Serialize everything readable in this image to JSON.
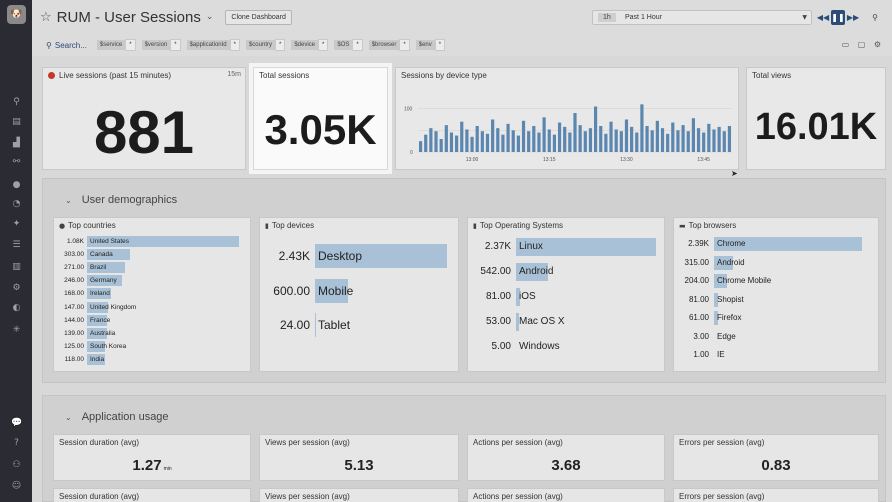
{
  "sidebar": {
    "logo": "🐶",
    "icons": [
      "binoculars-icon",
      "monitor-icon",
      "chart-icon",
      "network-icon",
      "alert-icon",
      "gauge-icon",
      "puzzle-icon",
      "list-icon",
      "notebook-icon",
      "gear-icon",
      "shield-icon",
      "sparkle-icon",
      "chat-icon",
      "help-icon",
      "team-icon",
      "user-avatar-icon"
    ]
  },
  "header": {
    "title": "RUM - User Sessions",
    "clone_label": "Clone Dashboard",
    "time_chip": "1h",
    "time_label": "Past 1 Hour",
    "search_label": "Search...",
    "variables": [
      {
        "name": "$service",
        "value": "*"
      },
      {
        "name": "$version",
        "value": "*"
      },
      {
        "name": "$applicationId",
        "value": "*"
      },
      {
        "name": "$country",
        "value": "*"
      },
      {
        "name": "$device",
        "value": "*"
      },
      {
        "name": "$OS",
        "value": "*"
      },
      {
        "name": "$browser",
        "value": "*"
      },
      {
        "name": "$env",
        "value": "*"
      }
    ]
  },
  "widgets": {
    "live_sessions": {
      "title": "Live sessions (past 15 minutes)",
      "badge": "15m",
      "value": "881"
    },
    "total_sessions": {
      "title": "Total sessions",
      "value": "3.05K"
    },
    "sessions_by_device": {
      "title": "Sessions by device type",
      "y_tick": "100",
      "y_zero": "0",
      "x_ticks": [
        "13:00",
        "13:15",
        "13:30",
        "13:45"
      ]
    },
    "total_views": {
      "title": "Total views",
      "value": "16.01K"
    }
  },
  "chart_data": {
    "type": "bar",
    "title": "Sessions by device type",
    "x": [
      "12:50",
      "12:51",
      "12:52",
      "12:53",
      "12:54",
      "12:55",
      "12:56",
      "12:57",
      "12:58",
      "12:59",
      "13:00",
      "13:01",
      "13:02",
      "13:03",
      "13:04",
      "13:05",
      "13:06",
      "13:07",
      "13:08",
      "13:09",
      "13:10",
      "13:11",
      "13:12",
      "13:13",
      "13:14",
      "13:15",
      "13:16",
      "13:17",
      "13:18",
      "13:19",
      "13:20",
      "13:21",
      "13:22",
      "13:23",
      "13:24",
      "13:25",
      "13:26",
      "13:27",
      "13:28",
      "13:29",
      "13:30",
      "13:31",
      "13:32",
      "13:33",
      "13:34",
      "13:35",
      "13:36",
      "13:37",
      "13:38",
      "13:39",
      "13:40",
      "13:41",
      "13:42",
      "13:43",
      "13:44",
      "13:45",
      "13:46",
      "13:47",
      "13:48",
      "13:49",
      "13:50"
    ],
    "values": [
      25,
      40,
      55,
      48,
      30,
      62,
      45,
      38,
      70,
      52,
      35,
      60,
      48,
      42,
      75,
      55,
      40,
      65,
      50,
      38,
      72,
      48,
      60,
      45,
      80,
      52,
      40,
      68,
      58,
      45,
      90,
      62,
      48,
      55,
      105,
      60,
      42,
      70,
      52,
      48,
      75,
      58,
      45,
      110,
      60,
      50,
      72,
      55,
      42,
      68,
      50,
      62,
      48,
      78,
      55,
      45,
      65,
      52,
      58,
      48,
      60
    ],
    "ylim": [
      0,
      120
    ],
    "grid": true,
    "color": "#5b86b0"
  },
  "groups": {
    "demographics": {
      "title": "User demographics",
      "countries": {
        "title": "Top countries",
        "rows": [
          {
            "value": "1.08K",
            "label": "United States",
            "pct": 1.0
          },
          {
            "value": "303.00",
            "label": "Canada",
            "pct": 0.28
          },
          {
            "value": "271.00",
            "label": "Brazil",
            "pct": 0.25
          },
          {
            "value": "246.00",
            "label": "Germany",
            "pct": 0.23
          },
          {
            "value": "168.00",
            "label": "Ireland",
            "pct": 0.16
          },
          {
            "value": "147.00",
            "label": "United Kingdom",
            "pct": 0.14
          },
          {
            "value": "144.00",
            "label": "France",
            "pct": 0.13
          },
          {
            "value": "139.00",
            "label": "Australia",
            "pct": 0.13
          },
          {
            "value": "125.00",
            "label": "South Korea",
            "pct": 0.12
          },
          {
            "value": "118.00",
            "label": "India",
            "pct": 0.11
          }
        ]
      },
      "devices": {
        "title": "Top devices",
        "rows": [
          {
            "value": "2.43K",
            "label": "Desktop",
            "pct": 1.0
          },
          {
            "value": "600.00",
            "label": "Mobile",
            "pct": 0.25
          },
          {
            "value": "24.00",
            "label": "Tablet",
            "pct": 0.01
          }
        ]
      },
      "os": {
        "title": "Top Operating Systems",
        "rows": [
          {
            "value": "2.37K",
            "label": "Linux",
            "pct": 1.0
          },
          {
            "value": "542.00",
            "label": "Android",
            "pct": 0.23
          },
          {
            "value": "81.00",
            "label": "iOS",
            "pct": 0.03
          },
          {
            "value": "53.00",
            "label": "Mac OS X",
            "pct": 0.02
          },
          {
            "value": "5.00",
            "label": "Windows",
            "pct": 0.0
          }
        ]
      },
      "browsers": {
        "title": "Top browsers",
        "rows": [
          {
            "value": "2.39K",
            "label": "Chrome",
            "pct": 1.0
          },
          {
            "value": "315.00",
            "label": "Android",
            "pct": 0.13
          },
          {
            "value": "204.00",
            "label": "Chrome Mobile",
            "pct": 0.09
          },
          {
            "value": "81.00",
            "label": "Shopist",
            "pct": 0.03
          },
          {
            "value": "61.00",
            "label": "Firefox",
            "pct": 0.03
          },
          {
            "value": "3.00",
            "label": "Edge",
            "pct": 0.0
          },
          {
            "value": "1.00",
            "label": "IE",
            "pct": 0.0
          }
        ]
      }
    },
    "usage": {
      "title": "Application usage",
      "metrics": [
        {
          "title": "Session duration (avg)",
          "value": "1.27",
          "unit": "min"
        },
        {
          "title": "Views per session (avg)",
          "value": "5.13",
          "unit": ""
        },
        {
          "title": "Actions per session (avg)",
          "value": "3.68",
          "unit": ""
        },
        {
          "title": "Errors per session (avg)",
          "value": "0.83",
          "unit": ""
        }
      ],
      "metrics_row2": [
        {
          "title": "Session duration (avg)"
        },
        {
          "title": "Views per session (avg)"
        },
        {
          "title": "Actions per session (avg)"
        },
        {
          "title": "Errors per session (avg)"
        }
      ]
    }
  }
}
